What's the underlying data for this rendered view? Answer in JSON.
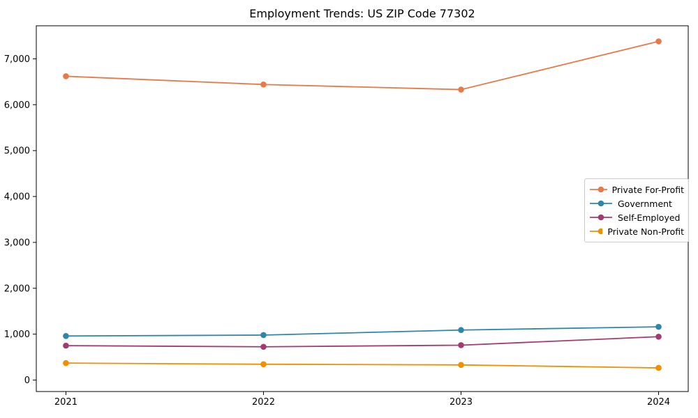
{
  "chart_data": {
    "type": "line",
    "title": "Employment Trends: US ZIP Code 77302",
    "x": [
      2021,
      2022,
      2023,
      2024
    ],
    "x_tick_labels": [
      "2021",
      "2022",
      "2023",
      "2024"
    ],
    "y_ticks": [
      0,
      1000,
      2000,
      3000,
      4000,
      5000,
      6000,
      7000
    ],
    "y_tick_labels": [
      "0",
      "1,000",
      "2,000",
      "3,000",
      "4,000",
      "5,000",
      "6,000",
      "7,000"
    ],
    "xlim": [
      2020.85,
      2024.15
    ],
    "ylim": [
      -250,
      7720
    ],
    "xlabel": "",
    "ylabel": "",
    "grid": false,
    "legend_position": "center right",
    "marker": "circle",
    "series": [
      {
        "name": "Private For-Profit",
        "color": "#E8794A",
        "values": [
          6620,
          6440,
          6330,
          7380
        ]
      },
      {
        "name": "Government",
        "color": "#2E86AB",
        "values": [
          960,
          980,
          1090,
          1160
        ]
      },
      {
        "name": "Self-Employed",
        "color": "#A23B72",
        "values": [
          750,
          725,
          760,
          945
        ]
      },
      {
        "name": "Private Non-Profit",
        "color": "#F18F01",
        "values": [
          370,
          345,
          330,
          265
        ]
      }
    ]
  }
}
